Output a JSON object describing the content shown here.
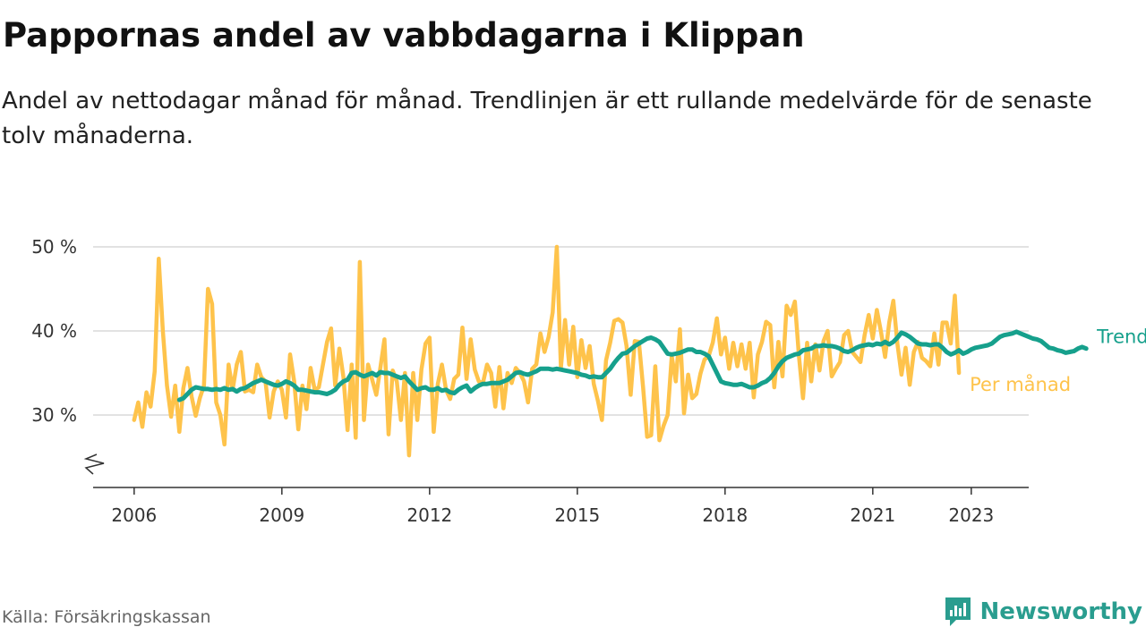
{
  "header": {
    "title": "Pappornas andel av vabbdagarna i Klippan",
    "subtitle": "Andel av nettodagar månad för månad. Trendlinjen är ett rullande medelvärde för de senaste tolv månaderna."
  },
  "footer": {
    "source": "Källa: Försäkringskassan",
    "brand": "Newsworthy"
  },
  "colors": {
    "monthly": "#FEC34B",
    "trend": "#16A08C",
    "grid": "#d9d9d9",
    "axis": "#333333"
  },
  "chart_data": {
    "type": "line",
    "title": "Pappornas andel av vabbdagarna i Klippan",
    "xlabel": "",
    "ylabel": "",
    "ylim": [
      22,
      52
    ],
    "xlim": [
      "2005-03",
      "2024-03"
    ],
    "y_ticks": [
      30,
      40,
      50
    ],
    "y_tick_labels": [
      "30 %",
      "40 %",
      "50 %"
    ],
    "x_ticks": [
      "2006-01",
      "2009-01",
      "2012-01",
      "2015-01",
      "2018-01",
      "2021-01",
      "2023-01"
    ],
    "x_tick_labels": [
      "2006",
      "2009",
      "2012",
      "2015",
      "2018",
      "2021",
      "2023"
    ],
    "grid": true,
    "legend": "right-end labels",
    "start": "2006-01",
    "series": [
      {
        "name": "Per månad",
        "start": "2006-01",
        "values": [
          29.4,
          31.5,
          28.6,
          32.7,
          31.0,
          35.2,
          48.6,
          40.0,
          33.5,
          29.8,
          33.5,
          28.0,
          33.2,
          35.6,
          32.2,
          29.9,
          32.0,
          33.5,
          45.0,
          43.2,
          31.5,
          30.0,
          26.5,
          36.0,
          33.0,
          36.0,
          37.5,
          32.8,
          33.0,
          32.7,
          36.0,
          34.5,
          34.0,
          29.7,
          32.8,
          34.0,
          33.0,
          29.7,
          37.2,
          34.0,
          28.3,
          33.5,
          30.7,
          35.6,
          33.0,
          33.3,
          36.0,
          38.7,
          40.3,
          33.5,
          37.9,
          34.5,
          28.2,
          36.0,
          27.3,
          48.2,
          29.4,
          36.0,
          34.2,
          32.4,
          35.6,
          39.0,
          27.7,
          35.3,
          34.0,
          29.4,
          35.0,
          25.2,
          35.0,
          29.4,
          35.4,
          38.5,
          39.2,
          28.0,
          33.7,
          36.0,
          33.0,
          31.9,
          34.3,
          34.8,
          40.4,
          34.3,
          39.0,
          35.4,
          34.0,
          33.8,
          36.0,
          35.0,
          31.0,
          35.7,
          30.8,
          35.0,
          33.8,
          35.6,
          35.0,
          34.0,
          31.5,
          35.5,
          36.0,
          39.7,
          37.5,
          39.3,
          42.2,
          50.0,
          35.6,
          41.3,
          36.0,
          40.5,
          34.5,
          38.9,
          35.6,
          38.2,
          33.7,
          31.7,
          29.4,
          36.5,
          38.6,
          41.2,
          41.4,
          41.0,
          38.2,
          32.4,
          38.8,
          38.7,
          33.4,
          27.4,
          27.6,
          35.8,
          27.0,
          28.7,
          30.0,
          37.0,
          34.0,
          40.2,
          30.2,
          34.8,
          32.0,
          32.5,
          34.9,
          36.6,
          37.0,
          38.6,
          41.5,
          37.2,
          39.2,
          35.5,
          38.6,
          35.8,
          38.4,
          35.5,
          38.6,
          32.1,
          37.2,
          38.7,
          41.1,
          40.7,
          33.3,
          38.7,
          34.6,
          43.0,
          41.9,
          43.5,
          37.1,
          32.0,
          38.6,
          34.0,
          38.4,
          35.3,
          38.8,
          40.0,
          34.6,
          35.5,
          36.3,
          39.5,
          40.0,
          37.5,
          36.9,
          36.3,
          39.5,
          41.9,
          39.1,
          42.5,
          39.9,
          36.9,
          41.0,
          43.6,
          38.5,
          34.8,
          38.0,
          33.6,
          37.5,
          38.7,
          36.8,
          36.4,
          35.8,
          39.7,
          36.0,
          41.0,
          41.0,
          38.5,
          44.2,
          35.0
        ]
      },
      {
        "name": "Trend",
        "start": "2006-12",
        "values": [
          31.8,
          32.0,
          32.5,
          33.0,
          33.3,
          33.2,
          33.1,
          33.1,
          33.0,
          33.1,
          33.0,
          33.2,
          33.0,
          33.1,
          32.8,
          33.1,
          33.2,
          33.5,
          33.8,
          34.0,
          34.2,
          34.0,
          33.8,
          33.6,
          33.5,
          33.7,
          34.0,
          33.8,
          33.5,
          33.0,
          33.0,
          32.9,
          32.8,
          32.7,
          32.7,
          32.6,
          32.5,
          32.7,
          33.0,
          33.6,
          34.0,
          34.2,
          35.0,
          35.1,
          34.8,
          34.6,
          34.8,
          35.0,
          34.7,
          35.1,
          35.0,
          35.0,
          34.8,
          34.6,
          34.4,
          34.6,
          34.0,
          33.5,
          33.0,
          33.2,
          33.3,
          33.0,
          33.0,
          33.2,
          32.9,
          33.0,
          32.7,
          32.6,
          33.0,
          33.3,
          33.5,
          32.8,
          33.2,
          33.5,
          33.7,
          33.7,
          33.8,
          33.8,
          33.8,
          34.0,
          34.2,
          34.6,
          35.0,
          35.1,
          34.9,
          34.8,
          35.0,
          35.2,
          35.5,
          35.5,
          35.5,
          35.4,
          35.5,
          35.4,
          35.3,
          35.2,
          35.1,
          35.0,
          34.8,
          34.7,
          34.5,
          34.6,
          34.5,
          34.5,
          35.0,
          35.5,
          36.2,
          36.8,
          37.3,
          37.4,
          37.8,
          38.2,
          38.5,
          38.8,
          39.1,
          39.2,
          39.0,
          38.7,
          38.0,
          37.3,
          37.2,
          37.3,
          37.4,
          37.6,
          37.8,
          37.8,
          37.5,
          37.5,
          37.3,
          37.0,
          36.0,
          35.0,
          34.0,
          33.8,
          33.7,
          33.6,
          33.6,
          33.7,
          33.5,
          33.3,
          33.3,
          33.5,
          33.8,
          34.0,
          34.4,
          35.0,
          35.8,
          36.4,
          36.8,
          37.0,
          37.2,
          37.3,
          37.7,
          37.8,
          37.9,
          38.2,
          38.2,
          38.3,
          38.2,
          38.2,
          38.1,
          37.9,
          37.6,
          37.5,
          37.7,
          38.0,
          38.2,
          38.3,
          38.4,
          38.3,
          38.5,
          38.4,
          38.7,
          38.4,
          38.7,
          39.2,
          39.8,
          39.6,
          39.3,
          38.9,
          38.5,
          38.4,
          38.4,
          38.3,
          38.4,
          38.4,
          38.0,
          37.5,
          37.2,
          37.4,
          37.7,
          37.3,
          37.5,
          37.8,
          38.0,
          38.1,
          38.2,
          38.3,
          38.5,
          38.9,
          39.3,
          39.5,
          39.6,
          39.7,
          39.9,
          39.7,
          39.5,
          39.3,
          39.1,
          39.0,
          38.8,
          38.4,
          38.0,
          37.9,
          37.7,
          37.6,
          37.4,
          37.5,
          37.6,
          37.9,
          38.1,
          37.9
        ]
      }
    ]
  }
}
